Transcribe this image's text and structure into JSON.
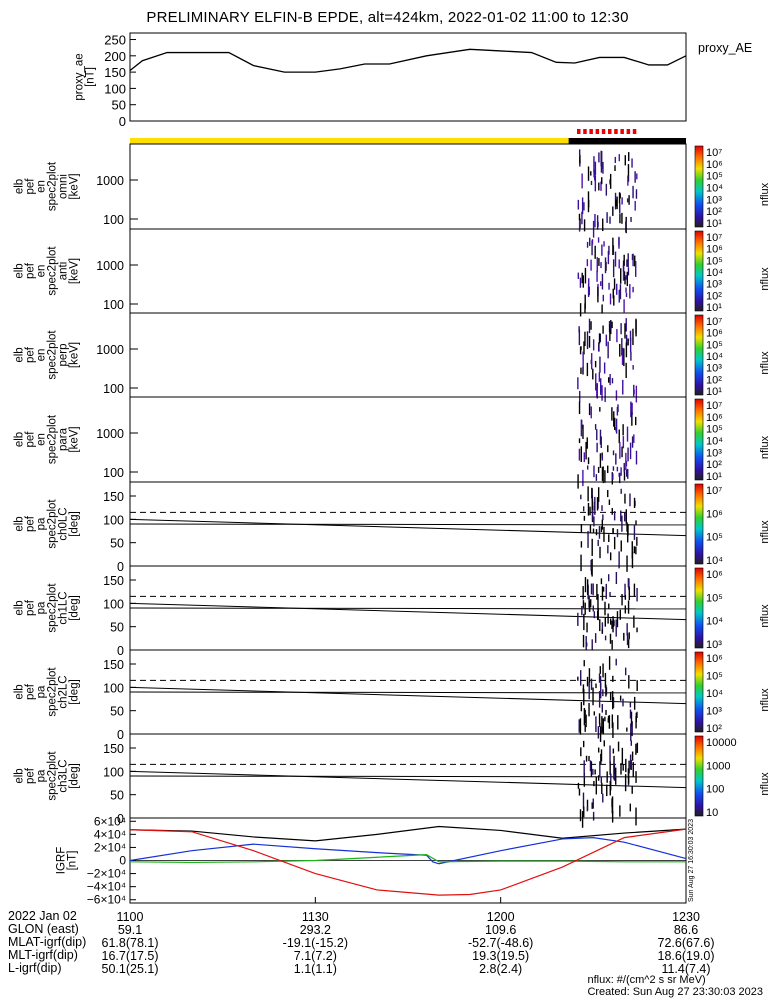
{
  "title": "PRELIMINARY ELFIN-B EPDE, alt=424km, 2022-01-02 11:00 to 12:30",
  "colors": {
    "ae": "#000000",
    "bar_yellow": "#ffdf00",
    "bar_black": "#000000",
    "bar_red": "#ee0000",
    "grf_black": "#000000",
    "grf_blue": "#1530d8",
    "grf_green": "#18b418",
    "grf_red": "#e01010"
  },
  "chart_data": [
    {
      "type": "line",
      "panel": "proxy_ae",
      "ylabel": [
        "proxy_ae",
        "[nT]"
      ],
      "right_label": "proxy_AE",
      "ylim": [
        0,
        270
      ],
      "yticks": [
        "250",
        "200",
        "150",
        "100",
        "50",
        "0"
      ],
      "ytick_values": [
        250,
        200,
        150,
        100,
        50,
        0
      ],
      "series": [
        {
          "x": [
            0,
            2,
            6,
            10,
            16,
            20,
            25,
            30,
            34,
            38,
            42,
            48,
            55,
            60,
            65,
            69,
            72,
            76,
            80,
            84,
            87,
            90
          ],
          "y": [
            155,
            185,
            210,
            210,
            210,
            170,
            150,
            150,
            160,
            175,
            175,
            200,
            220,
            215,
            210,
            180,
            178,
            195,
            195,
            172,
            172,
            200
          ]
        }
      ]
    },
    {
      "type": "heatmap",
      "panel": "en_omni",
      "ylabel": [
        "elb",
        "pef",
        "en",
        "spec2plot",
        "omni",
        "[keV]"
      ],
      "ytick_labels": [
        "1000",
        "100"
      ],
      "colorbar_ticks": [
        "10⁷",
        "10⁶",
        "10⁵",
        "10⁴",
        "10³",
        "10²",
        "10¹"
      ],
      "colorbar_label": "nflux"
    },
    {
      "type": "heatmap",
      "panel": "en_anti",
      "ylabel": [
        "elb",
        "pef",
        "en",
        "spec2plot",
        "anti",
        "[keV]"
      ],
      "ytick_labels": [
        "1000",
        "100"
      ],
      "colorbar_ticks": [
        "10⁷",
        "10⁶",
        "10⁵",
        "10⁴",
        "10³",
        "10²",
        "10¹"
      ],
      "colorbar_label": "nflux"
    },
    {
      "type": "heatmap",
      "panel": "en_perp",
      "ylabel": [
        "elb",
        "pef",
        "en",
        "spec2plot",
        "perp",
        "[keV]"
      ],
      "ytick_labels": [
        "1000",
        "100"
      ],
      "colorbar_ticks": [
        "10⁷",
        "10⁶",
        "10⁵",
        "10⁴",
        "10³",
        "10²",
        "10¹"
      ],
      "colorbar_label": "nflux"
    },
    {
      "type": "heatmap",
      "panel": "en_para",
      "ylabel": [
        "elb",
        "pef",
        "en",
        "spec2plot",
        "para",
        "[keV]"
      ],
      "ytick_labels": [
        "1000",
        "100"
      ],
      "colorbar_ticks": [
        "10⁷",
        "10⁶",
        "10⁵",
        "10⁴",
        "10³",
        "10²",
        "10¹"
      ],
      "colorbar_label": "nflux"
    },
    {
      "type": "heatmap",
      "panel": "pa_ch0",
      "ylabel": [
        "elb",
        "pef",
        "pa",
        "spec2plot",
        "ch0LC",
        "[deg]"
      ],
      "yticks": [
        "150",
        "100",
        "50",
        "0"
      ],
      "ylim": [
        0,
        180
      ],
      "colorbar_ticks": [
        "10⁷",
        "10⁶",
        "10⁵",
        "10⁴"
      ],
      "colorbar_label": "nflux"
    },
    {
      "type": "heatmap",
      "panel": "pa_ch1",
      "ylabel": [
        "elb",
        "pef",
        "pa",
        "spec2plot",
        "ch1LC",
        "[deg]"
      ],
      "yticks": [
        "150",
        "100",
        "50",
        "0"
      ],
      "ylim": [
        0,
        180
      ],
      "colorbar_ticks": [
        "10⁶",
        "10⁵",
        "10⁴",
        "10³"
      ],
      "colorbar_label": "nflux"
    },
    {
      "type": "heatmap",
      "panel": "pa_ch2",
      "ylabel": [
        "elb",
        "pef",
        "pa",
        "spec2plot",
        "ch2LC",
        "[deg]"
      ],
      "yticks": [
        "150",
        "100",
        "50",
        "0"
      ],
      "ylim": [
        0,
        180
      ],
      "colorbar_ticks": [
        "10⁶",
        "10⁵",
        "10⁴",
        "10³",
        "10²"
      ],
      "colorbar_label": "nflux"
    },
    {
      "type": "heatmap",
      "panel": "pa_ch3",
      "ylabel": [
        "elb",
        "pef",
        "pa",
        "spec2plot",
        "ch3LC",
        "[deg]"
      ],
      "yticks": [
        "150",
        "100",
        "50",
        "0"
      ],
      "ylim": [
        0,
        180
      ],
      "colorbar_ticks": [
        "10000",
        "1000",
        "100",
        "10"
      ],
      "colorbar_label": "nflux"
    },
    {
      "type": "line",
      "panel": "igrf",
      "ylabel": [
        "IGRF",
        "[nT]"
      ],
      "ylim": [
        -65000,
        65000
      ],
      "yticks": [
        "6×10⁴",
        "4×10⁴",
        "2×10⁴",
        "0",
        "−2×10⁴",
        "−4×10⁴",
        "−6×10⁴"
      ],
      "ytick_values": [
        60000,
        40000,
        20000,
        0,
        -20000,
        -40000,
        -60000
      ],
      "side_text": "Sun Aug 27 16:30:03 2023",
      "series": [
        {
          "name": "black",
          "x": [
            0,
            10,
            20,
            30,
            40,
            50,
            60,
            70,
            80,
            90
          ],
          "y": [
            47000,
            45000,
            36000,
            30000,
            40000,
            52000,
            46000,
            34000,
            42000,
            48000
          ]
        },
        {
          "name": "blue",
          "x": [
            0,
            10,
            20,
            30,
            40,
            48,
            49,
            50,
            60,
            70,
            75,
            80,
            90
          ],
          "y": [
            0,
            15000,
            25000,
            18000,
            12000,
            8000,
            -2000,
            -5000,
            15000,
            33000,
            35000,
            28000,
            3000
          ]
        },
        {
          "name": "green",
          "x": [
            0,
            10,
            20,
            30,
            40,
            48,
            50,
            60,
            70,
            80,
            90
          ],
          "y": [
            -2000,
            -3000,
            -2000,
            0,
            5000,
            9000,
            -2000,
            -1000,
            -1000,
            -2000,
            -2000
          ]
        },
        {
          "name": "red",
          "x": [
            0,
            10,
            20,
            30,
            40,
            50,
            55,
            60,
            70,
            80,
            90
          ],
          "y": [
            47000,
            44000,
            15000,
            -20000,
            -45000,
            -53000,
            -52000,
            -45000,
            -10000,
            35000,
            48000
          ]
        }
      ]
    }
  ],
  "xaxis": {
    "tick_labels": [
      "1100",
      "1130",
      "1200",
      "1230"
    ],
    "rows": [
      {
        "label": "2022 Jan 02",
        "values": [
          "1100",
          "1130",
          "1200",
          "1230"
        ]
      },
      {
        "label": "GLON (east)",
        "values": [
          "59.1",
          "293.2",
          "109.6",
          "86.6"
        ]
      },
      {
        "label": "MLAT-igrf(dip)",
        "values": [
          "61.8(78.1)",
          "-19.1(-15.2)",
          "-52.7(-48.6)",
          "72.6(67.6)"
        ]
      },
      {
        "label": "MLT-igrf(dip)",
        "values": [
          "16.7(17.5)",
          "7.1(7.2)",
          "19.3(19.5)",
          "18.6(19.0)"
        ]
      },
      {
        "label": "L-igrf(dip)",
        "values": [
          "50.1(25.1)",
          "1.1(1.1)",
          "2.8(2.4)",
          "11.4(7.4)"
        ]
      }
    ]
  },
  "footer": {
    "units": "nflux: #/(cm^2 s sr MeV)",
    "created": "Created: Sun Aug 27 23:30:03 2023"
  }
}
